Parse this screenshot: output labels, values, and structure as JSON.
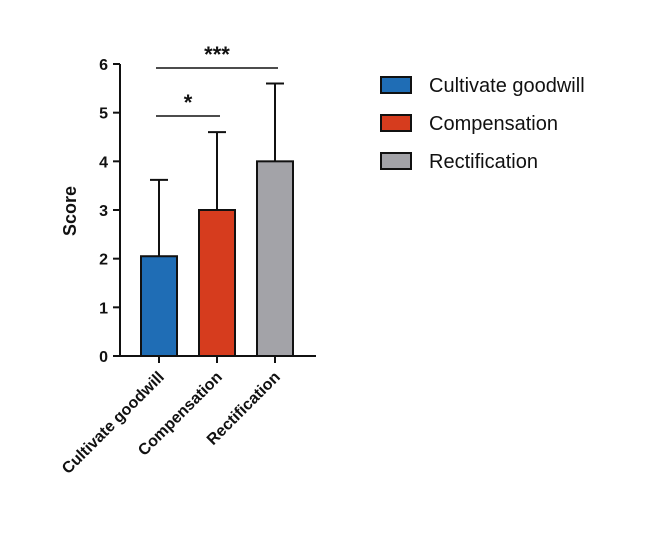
{
  "chart_data": {
    "type": "bar",
    "categories": [
      "Cultivate goodwill",
      "Compensation",
      "Rectification"
    ],
    "values": [
      2.05,
      3.0,
      4.0
    ],
    "errors": [
      1.57,
      1.6,
      1.6
    ],
    "colors": [
      "#1f6db5",
      "#d63c1e",
      "#a3a3a8"
    ],
    "ylabel": "Score",
    "ylim": [
      0,
      6
    ],
    "yticks": [
      0,
      1,
      2,
      3,
      4,
      5,
      6
    ],
    "grid": false,
    "legend_position": "right",
    "legend": [
      {
        "label": "Cultivate goodwill",
        "color": "#1f6db5"
      },
      {
        "label": "Compensation",
        "color": "#d63c1e"
      },
      {
        "label": "Rectification",
        "color": "#a3a3a8"
      }
    ],
    "significance": [
      {
        "from": 0,
        "to": 1,
        "label": "*"
      },
      {
        "from": 0,
        "to": 2,
        "label": "***"
      }
    ]
  }
}
